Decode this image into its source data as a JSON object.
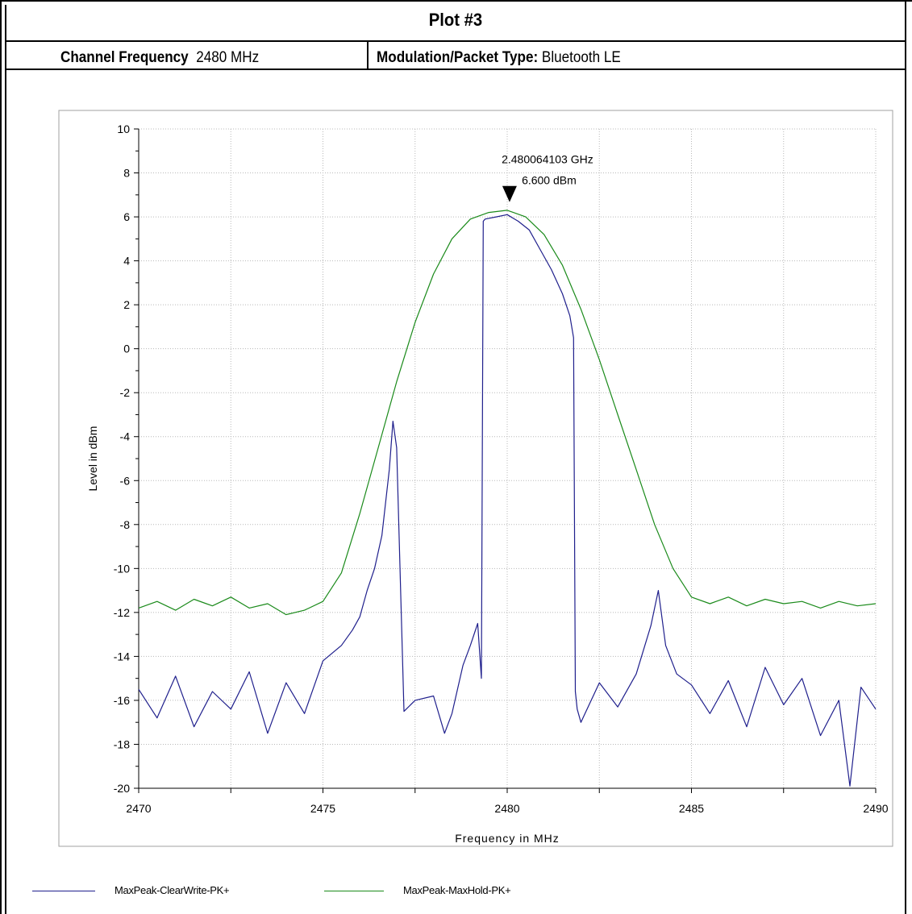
{
  "header": {
    "title": "Plot #3",
    "channel_frequency_label": "Channel Frequency",
    "channel_frequency_value": "2480 MHz",
    "modulation_label": "Modulation/Packet Type:",
    "modulation_value": "Bluetooth LE"
  },
  "marker": {
    "frequency_text": "2.480064103 GHz",
    "level_text": "6.600 dBm"
  },
  "legend": {
    "items": [
      {
        "label": "MaxPeak-ClearWrite-PK+",
        "color": "#1f1f8c"
      },
      {
        "label": "MaxPeak-MaxHold-PK+",
        "color": "#1a8a1a"
      }
    ]
  },
  "chart_data": {
    "type": "line",
    "xlabel": "Frequency in MHz",
    "ylabel": "Level in dBm",
    "xlim": [
      2470,
      2490
    ],
    "ylim": [
      -20,
      10
    ],
    "x_ticks": [
      2470,
      2475,
      2480,
      2485,
      2490
    ],
    "y_ticks": [
      10,
      8,
      6,
      4,
      2,
      0,
      -2,
      -4,
      -6,
      -8,
      -10,
      -12,
      -14,
      -16,
      -18,
      -20
    ],
    "grid": true,
    "legend_position": "bottom",
    "marker": {
      "x": 2480.064103,
      "y": 6.6
    },
    "series": [
      {
        "name": "MaxPeak-ClearWrite-PK+",
        "color": "#1f1f8c",
        "x": [
          2470.0,
          2470.5,
          2471.0,
          2471.5,
          2472.0,
          2472.5,
          2473.0,
          2473.5,
          2474.0,
          2474.5,
          2475.0,
          2475.5,
          2475.8,
          2476.0,
          2476.2,
          2476.4,
          2476.6,
          2476.8,
          2476.9,
          2477.0,
          2477.2,
          2477.5,
          2478.0,
          2478.3,
          2478.5,
          2478.8,
          2479.0,
          2479.2,
          2479.3,
          2479.35,
          2479.4,
          2479.7,
          2480.0,
          2480.3,
          2480.6,
          2480.9,
          2481.2,
          2481.5,
          2481.7,
          2481.8,
          2481.85,
          2481.9,
          2482.0,
          2482.5,
          2483.0,
          2483.5,
          2483.9,
          2484.1,
          2484.3,
          2484.6,
          2485.0,
          2485.5,
          2486.0,
          2486.5,
          2487.0,
          2487.5,
          2488.0,
          2488.5,
          2489.0,
          2489.3,
          2489.6,
          2490.0
        ],
        "y": [
          -15.5,
          -16.8,
          -14.9,
          -17.2,
          -15.6,
          -16.4,
          -14.7,
          -17.5,
          -15.2,
          -16.6,
          -14.2,
          -13.5,
          -12.8,
          -12.2,
          -11.0,
          -10.0,
          -8.5,
          -5.5,
          -3.3,
          -4.5,
          -16.5,
          -16.0,
          -15.8,
          -17.5,
          -16.6,
          -14.4,
          -13.5,
          -12.5,
          -15.0,
          5.8,
          5.9,
          6.0,
          6.1,
          5.8,
          5.4,
          4.5,
          3.6,
          2.5,
          1.5,
          0.5,
          -15.6,
          -16.4,
          -17.0,
          -15.2,
          -16.3,
          -14.8,
          -12.6,
          -11.0,
          -13.5,
          -14.8,
          -15.3,
          -16.6,
          -15.1,
          -17.2,
          -14.5,
          -16.2,
          -15.0,
          -17.6,
          -16.0,
          -19.9,
          -15.4,
          -16.4
        ]
      },
      {
        "name": "MaxPeak-MaxHold-PK+",
        "color": "#1a8a1a",
        "x": [
          2470.0,
          2470.5,
          2471.0,
          2471.5,
          2472.0,
          2472.5,
          2473.0,
          2473.5,
          2474.0,
          2474.5,
          2475.0,
          2475.5,
          2476.0,
          2476.5,
          2477.0,
          2477.5,
          2478.0,
          2478.5,
          2479.0,
          2479.5,
          2480.0,
          2480.5,
          2481.0,
          2481.5,
          2482.0,
          2482.5,
          2483.0,
          2483.5,
          2484.0,
          2484.5,
          2485.0,
          2485.5,
          2486.0,
          2486.5,
          2487.0,
          2487.5,
          2488.0,
          2488.5,
          2489.0,
          2489.5,
          2490.0
        ],
        "y": [
          -11.8,
          -11.5,
          -11.9,
          -11.4,
          -11.7,
          -11.3,
          -11.8,
          -11.6,
          -12.1,
          -11.9,
          -11.5,
          -10.2,
          -7.5,
          -4.5,
          -1.5,
          1.2,
          3.4,
          5.0,
          5.9,
          6.2,
          6.3,
          6.0,
          5.2,
          3.8,
          1.8,
          -0.5,
          -3.0,
          -5.5,
          -8.0,
          -10.0,
          -11.3,
          -11.6,
          -11.3,
          -11.7,
          -11.4,
          -11.6,
          -11.5,
          -11.8,
          -11.5,
          -11.7,
          -11.6
        ]
      }
    ]
  }
}
